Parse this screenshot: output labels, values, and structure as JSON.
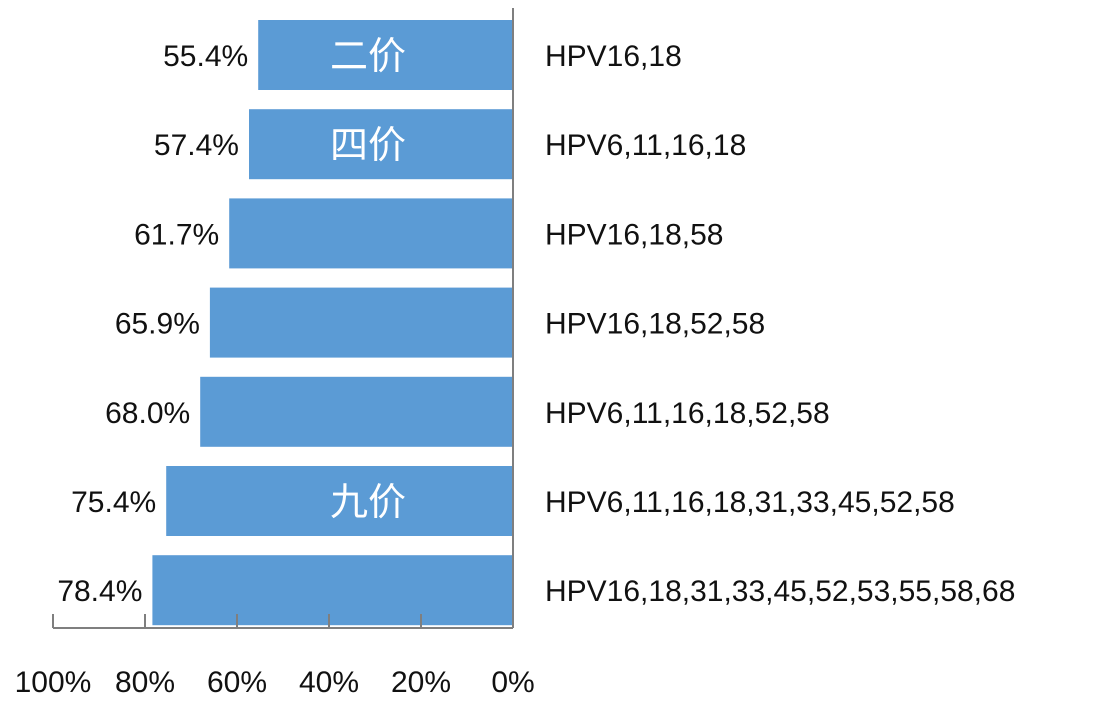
{
  "chart_data": {
    "type": "bar",
    "orientation": "horizontal",
    "direction": "right-to-left",
    "categories": [
      "HPV16,18",
      "HPV6,11,16,18",
      "HPV16,18,58",
      "HPV16,18,52,58",
      "HPV6,11,16,18,52,58",
      "HPV6,11,16,18,31,33,45,52,58",
      "HPV16,18,31,33,45,52,53,55,58,68"
    ],
    "values": [
      55.4,
      57.4,
      61.7,
      65.9,
      68.0,
      75.4,
      78.4
    ],
    "value_labels": [
      "55.4%",
      "57.4%",
      "61.7%",
      "65.9%",
      "68.0%",
      "75.4%",
      "78.4%"
    ],
    "bar_annotations": [
      "二价",
      "四价",
      "",
      "",
      "",
      "九价",
      ""
    ],
    "xlim": [
      0,
      100
    ],
    "x_ticks": [
      100,
      80,
      60,
      40,
      20,
      0
    ],
    "x_tick_labels": [
      "100%",
      "80%",
      "60%",
      "40%",
      "20%",
      "0%"
    ],
    "bar_color": "#5b9bd5",
    "axis_color": "#7f7f7f",
    "grid": false,
    "legend": "none"
  }
}
